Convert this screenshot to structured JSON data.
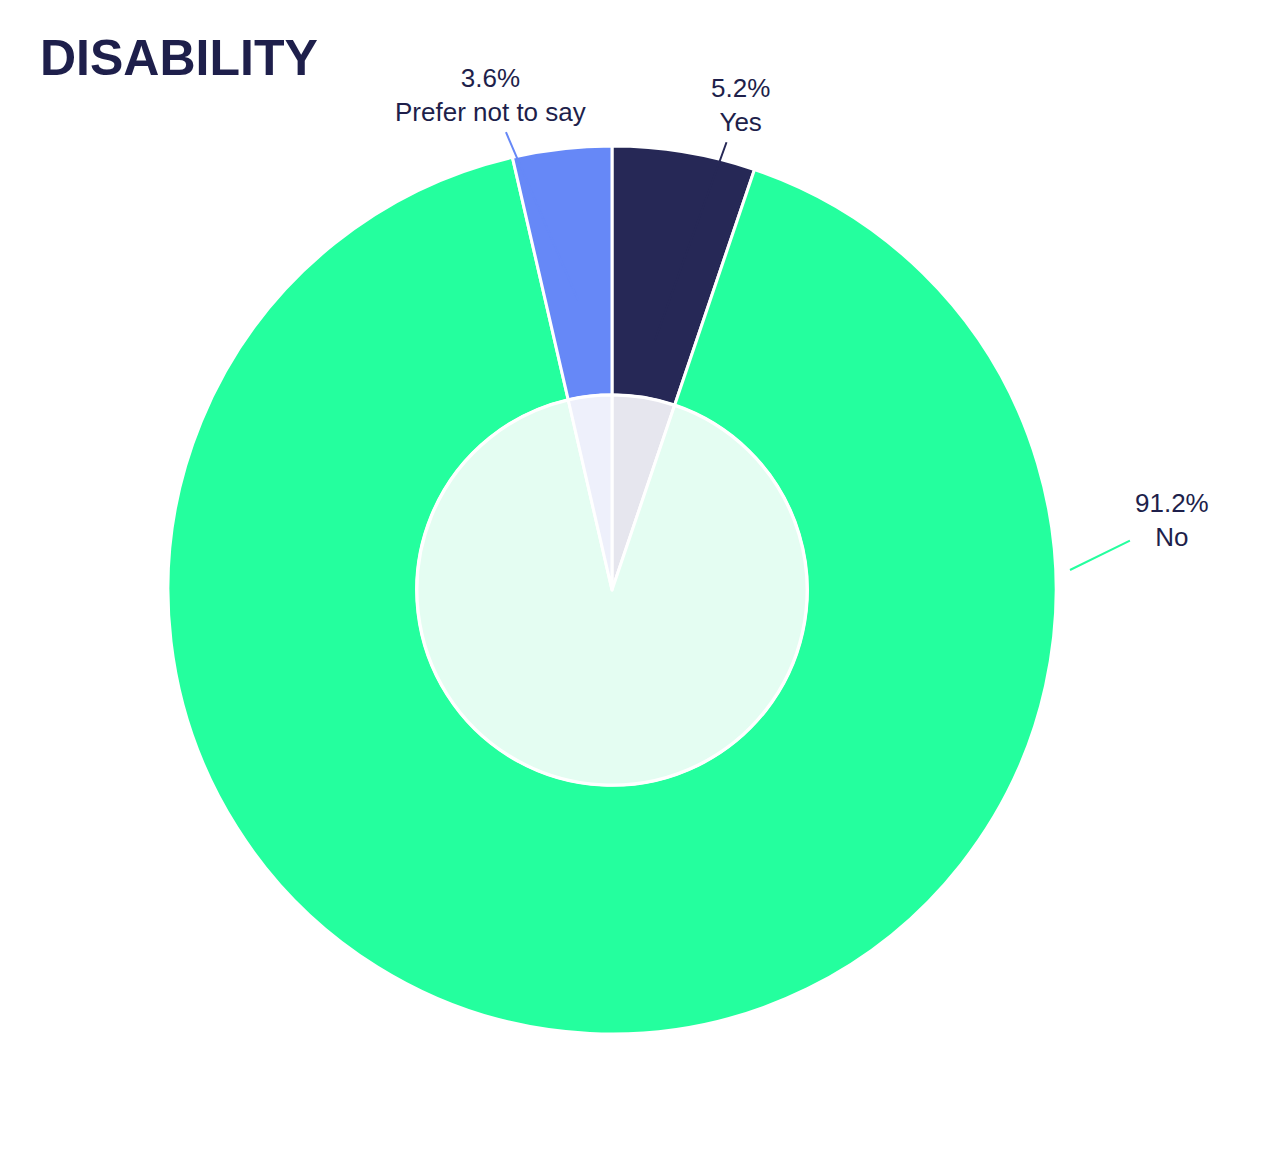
{
  "chart_data": {
    "type": "pie",
    "title": "DISABILITY",
    "categories": [
      "Yes",
      "No",
      "Prefer not to say"
    ],
    "values": [
      5.2,
      91.2,
      3.6
    ],
    "value_labels": [
      "5.2%",
      "91.2%",
      "3.6%"
    ],
    "colors": [
      "#262856",
      "#24ff9e",
      "#6688f7"
    ],
    "data_labels": true
  }
}
